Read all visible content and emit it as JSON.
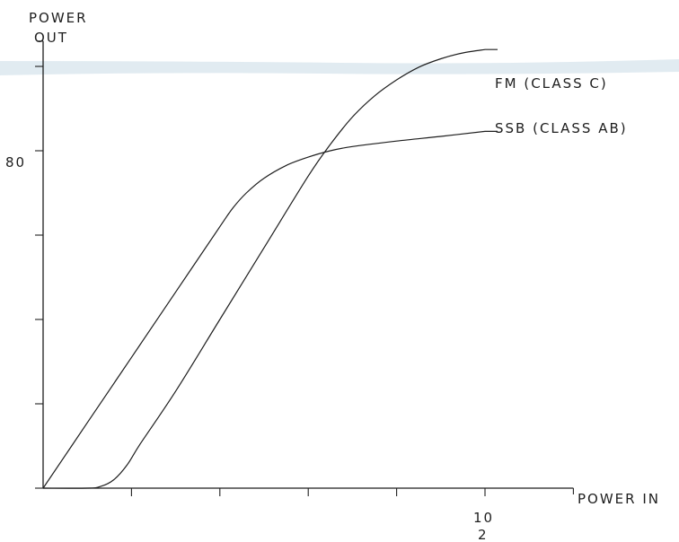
{
  "chart_data": {
    "type": "line",
    "y_axis_label_line1": "POWER",
    "y_axis_label_line2": "OUT",
    "x_axis_label": "POWER IN",
    "x_tick_label": "10",
    "x_tick_sublabel": "2",
    "y_tick_label": "80",
    "x_ticks": [
      0,
      2,
      4,
      6,
      8,
      10
    ],
    "y_ticks": [
      0,
      20,
      40,
      60,
      80,
      100
    ],
    "xlim": [
      0,
      12
    ],
    "ylim": [
      0,
      106
    ],
    "series": [
      {
        "name": "SSB (CLASS AB)",
        "x": [
          0,
          1,
          2,
          3,
          4,
          4.3,
          4.6,
          5,
          5.5,
          6,
          6.5,
          7,
          8,
          9,
          10
        ],
        "y": [
          0,
          15.5,
          31,
          46.5,
          62,
          66.5,
          70,
          73.5,
          76.5,
          78.5,
          80,
          81,
          82.3,
          83.4,
          84.6
        ]
      },
      {
        "name": "FM (CLASS C)",
        "x": [
          0,
          1,
          1.3,
          1.6,
          1.9,
          2.2,
          3,
          4,
          5,
          6,
          6.5,
          7,
          7.5,
          8,
          8.5,
          9,
          9.5,
          10
        ],
        "y": [
          0,
          0,
          0.4,
          2,
          5.5,
          10.5,
          23,
          40,
          57,
          74,
          81.5,
          88,
          93,
          96.8,
          99.8,
          101.8,
          103.2,
          104
        ]
      }
    ]
  }
}
